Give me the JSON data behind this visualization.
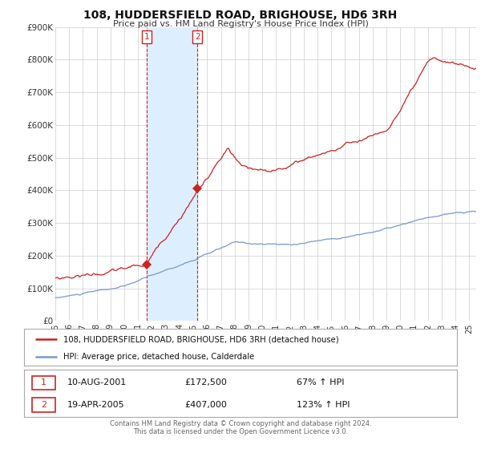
{
  "title": "108, HUDDERSFIELD ROAD, BRIGHOUSE, HD6 3RH",
  "subtitle": "Price paid vs. HM Land Registry's House Price Index (HPI)",
  "legend_line1": "108, HUDDERSFIELD ROAD, BRIGHOUSE, HD6 3RH (detached house)",
  "legend_line2": "HPI: Average price, detached house, Calderdale",
  "footer": "Contains HM Land Registry data © Crown copyright and database right 2024.\nThis data is licensed under the Open Government Licence v3.0.",
  "transaction1_date": 2001.61,
  "transaction1_price": 172500,
  "transaction1_info": "10-AUG-2001",
  "transaction1_price_str": "£172,500",
  "transaction1_hpi_str": "67% ↑ HPI",
  "transaction2_date": 2005.3,
  "transaction2_price": 407000,
  "transaction2_info": "19-APR-2005",
  "transaction2_price_str": "£407,000",
  "transaction2_hpi_str": "123% ↑ HPI",
  "hpi_color": "#7799cc",
  "price_color": "#cc2222",
  "shading_color": "#ddeeff",
  "background_color": "#ffffff",
  "grid_color": "#cccccc",
  "ylim": [
    0,
    900000
  ],
  "xlim_start": 1995.0,
  "xlim_end": 2025.5,
  "yticks": [
    0,
    100000,
    200000,
    300000,
    400000,
    500000,
    600000,
    700000,
    800000,
    900000
  ],
  "ytick_labels": [
    "£0",
    "£100K",
    "£200K",
    "£300K",
    "£400K",
    "£500K",
    "£600K",
    "£700K",
    "£800K",
    "£900K"
  ],
  "xtick_years": [
    1995,
    1996,
    1997,
    1998,
    1999,
    2000,
    2001,
    2002,
    2003,
    2004,
    2005,
    2006,
    2007,
    2008,
    2009,
    2010,
    2011,
    2012,
    2013,
    2014,
    2015,
    2016,
    2017,
    2018,
    2019,
    2020,
    2021,
    2022,
    2023,
    2024,
    2025
  ]
}
